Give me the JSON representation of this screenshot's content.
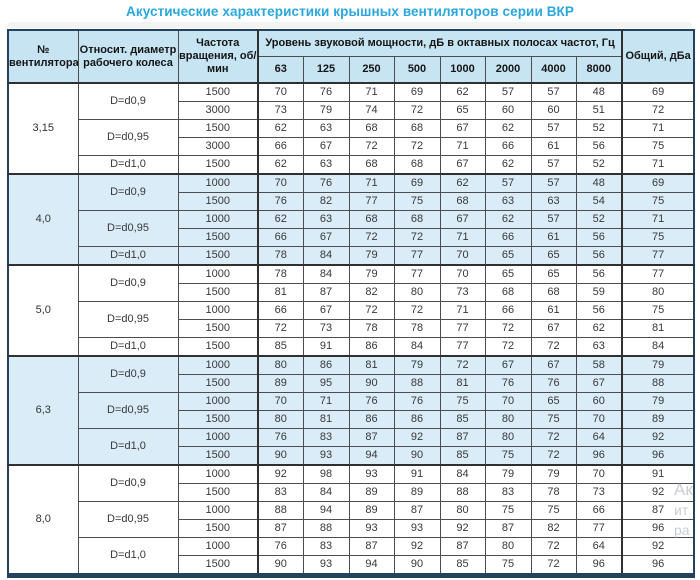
{
  "title": "Акустические характеристики крышных вентиляторов серии ВКР",
  "table": {
    "headers": {
      "fan_no": "№ вентилятора",
      "rel_diameter": "Относит. диаметр рабочего колеса",
      "rpm": "Частота вращения, об/мин",
      "spl_group": "Уровень звуковой мощности, дБ в октавных полосах частот, Гц",
      "frequencies": [
        "63",
        "125",
        "250",
        "500",
        "1000",
        "2000",
        "4000",
        "8000"
      ],
      "total": "Общий, дБа"
    },
    "sections": [
      {
        "fan": "3,15",
        "shaded": false,
        "groups": [
          {
            "diameter": "D=d0,9",
            "rows": [
              {
                "rpm": "1500",
                "values": [
                  70,
                  76,
                  71,
                  69,
                  62,
                  57,
                  57,
                  48
                ],
                "total": 69
              },
              {
                "rpm": "3000",
                "values": [
                  73,
                  79,
                  74,
                  72,
                  65,
                  60,
                  60,
                  51
                ],
                "total": 72
              }
            ]
          },
          {
            "diameter": "D=d0,95",
            "rows": [
              {
                "rpm": "1500",
                "values": [
                  62,
                  63,
                  68,
                  68,
                  67,
                  62,
                  57,
                  52
                ],
                "total": 71
              },
              {
                "rpm": "3000",
                "values": [
                  66,
                  67,
                  72,
                  72,
                  71,
                  66,
                  61,
                  56
                ],
                "total": 75
              }
            ]
          },
          {
            "diameter": "D=d1,0",
            "rows": [
              {
                "rpm": "1500",
                "values": [
                  62,
                  63,
                  68,
                  68,
                  67,
                  62,
                  57,
                  52
                ],
                "total": 71
              }
            ]
          }
        ]
      },
      {
        "fan": "4,0",
        "shaded": true,
        "groups": [
          {
            "diameter": "D=d0,9",
            "rows": [
              {
                "rpm": "1000",
                "values": [
                  70,
                  76,
                  71,
                  69,
                  62,
                  57,
                  57,
                  48
                ],
                "total": 69
              },
              {
                "rpm": "1500",
                "values": [
                  76,
                  82,
                  77,
                  75,
                  68,
                  63,
                  63,
                  54
                ],
                "total": 75
              }
            ]
          },
          {
            "diameter": "D=d0,95",
            "rows": [
              {
                "rpm": "1000",
                "values": [
                  62,
                  63,
                  68,
                  68,
                  67,
                  62,
                  57,
                  52
                ],
                "total": 71
              },
              {
                "rpm": "1500",
                "values": [
                  66,
                  67,
                  72,
                  72,
                  71,
                  66,
                  61,
                  56
                ],
                "total": 75
              }
            ]
          },
          {
            "diameter": "D=d1,0",
            "rows": [
              {
                "rpm": "1500",
                "values": [
                  78,
                  84,
                  79,
                  77,
                  70,
                  65,
                  65,
                  56
                ],
                "total": 77
              }
            ]
          }
        ]
      },
      {
        "fan": "5,0",
        "shaded": false,
        "groups": [
          {
            "diameter": "D=d0,9",
            "rows": [
              {
                "rpm": "1000",
                "values": [
                  78,
                  84,
                  79,
                  77,
                  70,
                  65,
                  65,
                  56
                ],
                "total": 77
              },
              {
                "rpm": "1500",
                "values": [
                  81,
                  87,
                  82,
                  80,
                  73,
                  68,
                  68,
                  59
                ],
                "total": 80
              }
            ]
          },
          {
            "diameter": "D=d0,95",
            "rows": [
              {
                "rpm": "1000",
                "values": [
                  66,
                  67,
                  72,
                  72,
                  71,
                  66,
                  61,
                  56
                ],
                "total": 75
              },
              {
                "rpm": "1500",
                "values": [
                  72,
                  73,
                  78,
                  78,
                  77,
                  72,
                  67,
                  62
                ],
                "total": 81
              }
            ]
          },
          {
            "diameter": "D=d1,0",
            "rows": [
              {
                "rpm": "1500",
                "values": [
                  85,
                  91,
                  86,
                  84,
                  77,
                  72,
                  72,
                  63
                ],
                "total": 84
              }
            ]
          }
        ]
      },
      {
        "fan": "6,3",
        "shaded": true,
        "groups": [
          {
            "diameter": "D=d0,9",
            "rows": [
              {
                "rpm": "1000",
                "values": [
                  80,
                  86,
                  81,
                  79,
                  72,
                  67,
                  67,
                  58
                ],
                "total": 79
              },
              {
                "rpm": "1500",
                "values": [
                  89,
                  95,
                  90,
                  88,
                  81,
                  76,
                  76,
                  67
                ],
                "total": 88
              }
            ]
          },
          {
            "diameter": "D=d0,95",
            "rows": [
              {
                "rpm": "1000",
                "values": [
                  70,
                  71,
                  76,
                  76,
                  75,
                  70,
                  65,
                  60
                ],
                "total": 79
              },
              {
                "rpm": "1500",
                "values": [
                  80,
                  81,
                  86,
                  86,
                  85,
                  80,
                  75,
                  70
                ],
                "total": 89
              }
            ]
          },
          {
            "diameter": "D=d1,0",
            "rows": [
              {
                "rpm": "1000",
                "values": [
                  76,
                  83,
                  87,
                  92,
                  87,
                  80,
                  72,
                  64
                ],
                "total": 92
              },
              {
                "rpm": "1500",
                "values": [
                  90,
                  93,
                  94,
                  90,
                  85,
                  75,
                  72,
                  96
                ],
                "total": 96
              }
            ]
          }
        ]
      },
      {
        "fan": "8,0",
        "shaded": false,
        "groups": [
          {
            "diameter": "D=d0,9",
            "rows": [
              {
                "rpm": "1000",
                "values": [
                  92,
                  98,
                  93,
                  91,
                  84,
                  79,
                  79,
                  70
                ],
                "total": 91
              },
              {
                "rpm": "1500",
                "values": [
                  83,
                  84,
                  89,
                  89,
                  88,
                  83,
                  78,
                  73
                ],
                "total": 92
              }
            ]
          },
          {
            "diameter": "D=d0,95",
            "rows": [
              {
                "rpm": "1000",
                "values": [
                  88,
                  94,
                  89,
                  87,
                  80,
                  75,
                  75,
                  66
                ],
                "total": 87
              },
              {
                "rpm": "1500",
                "values": [
                  87,
                  88,
                  93,
                  93,
                  92,
                  87,
                  82,
                  77
                ],
                "total": 96
              }
            ]
          },
          {
            "diameter": "D=d1,0",
            "rows": [
              {
                "rpm": "1000",
                "values": [
                  76,
                  83,
                  87,
                  92,
                  87,
                  80,
                  72,
                  64
                ],
                "total": 92
              },
              {
                "rpm": "1500",
                "values": [
                  90,
                  93,
                  94,
                  90,
                  85,
                  75,
                  72,
                  96
                ],
                "total": 96
              }
            ]
          }
        ]
      }
    ]
  },
  "watermark": {
    "lines": [
      "Ак",
      "ит",
      "ра"
    ]
  },
  "colors": {
    "title": "#29a8df",
    "header_bg": "#c7e4f3",
    "shaded_row_bg": "#d9ecf8",
    "inner_border": "#4d4d4d",
    "outer_border": "#24415f"
  }
}
